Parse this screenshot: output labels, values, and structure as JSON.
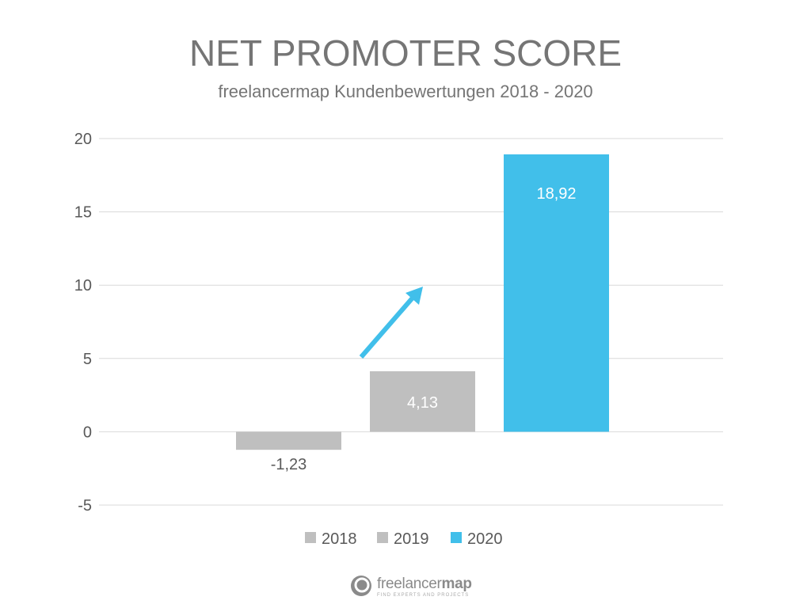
{
  "chart_data": {
    "type": "bar",
    "title": "NET PROMOTER SCORE",
    "subtitle": "freelancermap Kundenbewertungen 2018 - 2020",
    "xlabel": "",
    "ylabel": "",
    "ylim": [
      -5,
      20
    ],
    "yticks": [
      20,
      15,
      10,
      5,
      0,
      -5
    ],
    "grid": true,
    "legend_position": "bottom",
    "series": [
      {
        "name": "2018",
        "value": -1.23,
        "label": "-1,23",
        "color": "#bfbfbf"
      },
      {
        "name": "2019",
        "value": 4.13,
        "label": "4,13",
        "color": "#bfbfbf"
      },
      {
        "name": "2020",
        "value": 18.92,
        "label": "18,92",
        "color": "#41bfea"
      }
    ],
    "annotation": {
      "type": "trend-arrow",
      "color": "#41bfea"
    }
  },
  "logo": {
    "name_light": "freelancer",
    "name_bold": "map",
    "tagline": "FIND EXPERTS AND PROJECTS"
  }
}
